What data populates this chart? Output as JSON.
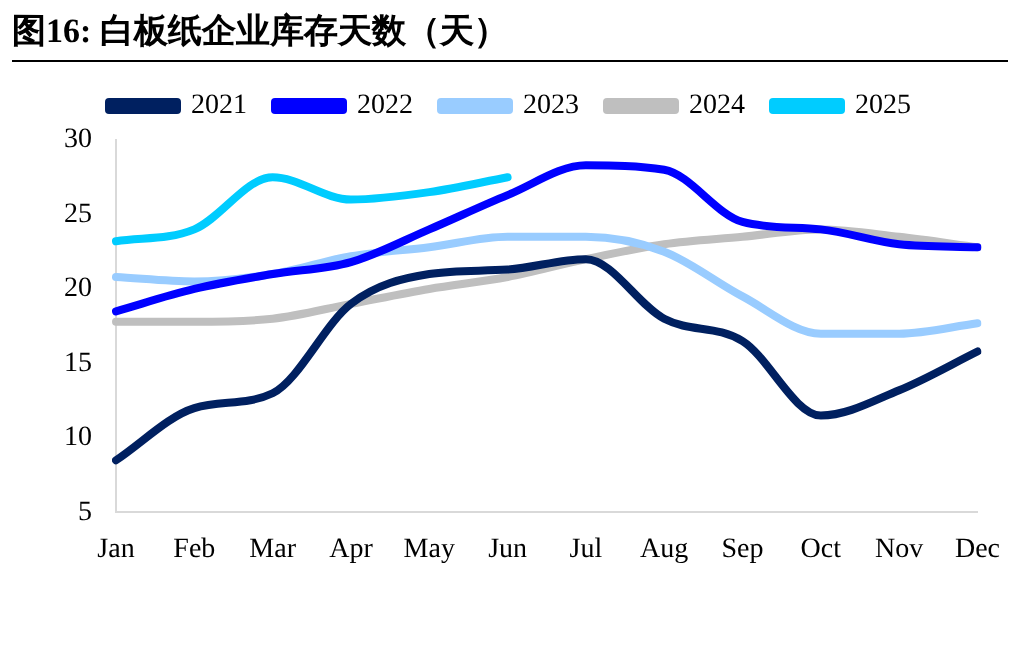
{
  "chart_data": {
    "type": "line",
    "title": "图16:  白板纸企业库存天数（天）",
    "categories": [
      "Jan",
      "Feb",
      "Mar",
      "Apr",
      "May",
      "Jun",
      "Jul",
      "Aug",
      "Sep",
      "Oct",
      "Nov",
      "Dec"
    ],
    "series": [
      {
        "name": "2021",
        "color": "#002060",
        "values": [
          8.5,
          12,
          13,
          19,
          21,
          21.3,
          22,
          18,
          16.5,
          11.5,
          13.2,
          15.8
        ]
      },
      {
        "name": "2022",
        "color": "#0000ff",
        "values": [
          18.5,
          20,
          21,
          21.8,
          24,
          26.3,
          28.3,
          28,
          24.5,
          24,
          23,
          22.8
        ]
      },
      {
        "name": "2023",
        "color": "#99ccff",
        "values": [
          20.8,
          20.5,
          21,
          22.2,
          22.8,
          23.5,
          23.5,
          22.5,
          19.5,
          17,
          17,
          17.7
        ]
      },
      {
        "name": "2024",
        "color": "#bfbfbf",
        "values": [
          17.8,
          17.8,
          18,
          19,
          20,
          20.8,
          22,
          23,
          23.5,
          24,
          23.5,
          22.8
        ]
      },
      {
        "name": "2025",
        "color": "#00ccff",
        "values": [
          23.2,
          24,
          27.5,
          26,
          26.5,
          27.5,
          null,
          null,
          null,
          null,
          null,
          null
        ]
      }
    ],
    "ylim": [
      5,
      30
    ],
    "yticks": [
      5,
      10,
      15,
      20,
      25,
      30
    ],
    "grid": false,
    "legend": "top",
    "marker": "none",
    "line_style": "solid"
  }
}
